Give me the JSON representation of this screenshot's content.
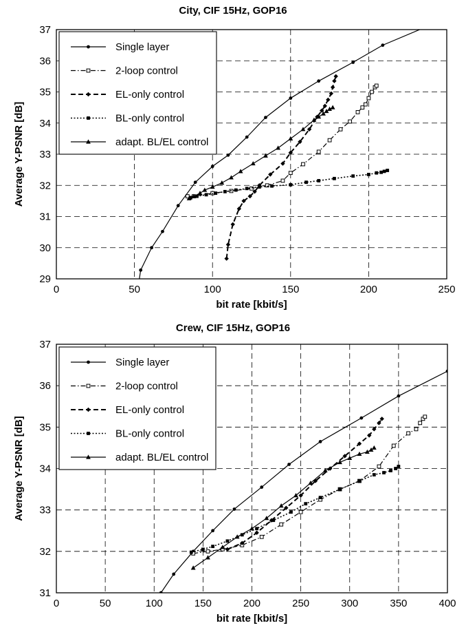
{
  "chart_data": [
    {
      "type": "line",
      "title": "City, CIF 15Hz, GOP16",
      "xlabel": "bit rate [kbit/s]",
      "ylabel": "Average Y-PSNR [dB]",
      "xlim": [
        0,
        250
      ],
      "ylim": [
        29,
        37
      ],
      "xticks": [
        0,
        50,
        100,
        150,
        200,
        250
      ],
      "yticks": [
        29,
        30,
        31,
        32,
        33,
        34,
        35,
        36,
        37
      ],
      "grid": true,
      "legend_position": "top-left",
      "series": [
        {
          "name": "Single layer",
          "marker": "circle",
          "dash": "solid",
          "x": [
            53,
            54,
            61,
            68,
            78,
            89,
            100,
            110,
            122,
            134,
            150,
            168,
            190,
            209,
            235
          ],
          "y": [
            28.95,
            29.28,
            30.0,
            30.52,
            31.35,
            32.1,
            32.61,
            32.97,
            33.55,
            34.18,
            34.8,
            35.35,
            35.95,
            36.5,
            37.05
          ]
        },
        {
          "name": "2-loop control",
          "marker": "open-square",
          "dash": "dashdot",
          "x": [
            84,
            88,
            100,
            112,
            125,
            135,
            145,
            150,
            158,
            168,
            175,
            182,
            188,
            193,
            196,
            198,
            200,
            202,
            204,
            205
          ],
          "y": [
            31.65,
            31.65,
            31.75,
            31.82,
            31.9,
            32.0,
            32.15,
            32.4,
            32.68,
            33.08,
            33.45,
            33.8,
            34.05,
            34.35,
            34.5,
            34.6,
            34.8,
            35.0,
            35.15,
            35.2
          ]
        },
        {
          "name": "EL-only control",
          "marker": "diamond",
          "dash": "dash",
          "x": [
            109,
            110,
            113,
            117,
            120,
            124,
            127,
            130,
            137,
            145,
            150,
            156,
            162,
            167,
            170,
            172,
            174,
            176,
            177,
            178,
            179
          ],
          "y": [
            29.65,
            30.1,
            30.75,
            31.25,
            31.5,
            31.65,
            31.8,
            32.0,
            32.35,
            32.7,
            33.05,
            33.4,
            33.8,
            34.2,
            34.4,
            34.55,
            34.75,
            34.95,
            35.15,
            35.35,
            35.5
          ]
        },
        {
          "name": "BL-only control",
          "marker": "filled-square",
          "dash": "dot",
          "x": [
            86,
            90,
            96,
            102,
            108,
            115,
            122,
            130,
            138,
            150,
            160,
            168,
            178,
            190,
            200,
            205,
            208,
            210,
            212
          ],
          "y": [
            31.6,
            31.65,
            31.7,
            31.75,
            31.8,
            31.85,
            31.9,
            31.95,
            31.98,
            32.02,
            32.1,
            32.15,
            32.22,
            32.3,
            32.35,
            32.4,
            32.42,
            32.45,
            32.48
          ]
        },
        {
          "name": "adapt. BL/EL control",
          "marker": "triangle",
          "dash": "solid",
          "x": [
            85,
            88,
            92,
            95,
            100,
            106,
            112,
            118,
            126,
            134,
            142,
            150,
            158,
            165,
            168,
            171,
            173,
            175,
            177
          ],
          "y": [
            31.58,
            31.65,
            31.75,
            31.85,
            31.95,
            32.08,
            32.25,
            32.45,
            32.7,
            32.95,
            33.2,
            33.5,
            33.8,
            34.1,
            34.2,
            34.3,
            34.38,
            34.45,
            34.5
          ]
        }
      ]
    },
    {
      "type": "line",
      "title": "Crew, CIF 15Hz, GOP16",
      "xlabel": "bit rate [kbit/s]",
      "ylabel": "Average Y-PSNR [dB]",
      "xlim": [
        0,
        400
      ],
      "ylim": [
        31,
        37
      ],
      "xticks": [
        0,
        50,
        100,
        150,
        200,
        250,
        300,
        350,
        400
      ],
      "yticks": [
        31,
        32,
        33,
        34,
        35,
        36,
        37
      ],
      "grid": true,
      "legend_position": "top-left",
      "series": [
        {
          "name": "Single layer",
          "marker": "circle",
          "dash": "solid",
          "x": [
            107,
            120,
            140,
            160,
            182,
            210,
            238,
            270,
            312,
            350,
            400
          ],
          "y": [
            31.0,
            31.45,
            32.0,
            32.5,
            33.02,
            33.55,
            34.1,
            34.65,
            35.22,
            35.75,
            36.35
          ]
        },
        {
          "name": "2-loop control",
          "marker": "open-square",
          "dash": "dashdot",
          "x": [
            140,
            155,
            170,
            190,
            210,
            230,
            250,
            270,
            290,
            310,
            330,
            345,
            360,
            368,
            372,
            375,
            377
          ],
          "y": [
            31.95,
            32.0,
            32.05,
            32.15,
            32.35,
            32.65,
            32.95,
            33.25,
            33.5,
            33.7,
            34.05,
            34.55,
            34.85,
            34.95,
            35.1,
            35.2,
            35.25
          ]
        },
        {
          "name": "EL-only control",
          "marker": "diamond",
          "dash": "dash",
          "x": [
            175,
            190,
            205,
            220,
            235,
            250,
            265,
            280,
            295,
            310,
            320,
            325,
            330,
            333
          ],
          "y": [
            32.05,
            32.2,
            32.45,
            32.75,
            33.05,
            33.35,
            33.7,
            34.0,
            34.3,
            34.6,
            34.8,
            34.95,
            35.1,
            35.2
          ]
        },
        {
          "name": "BL-only control",
          "marker": "filled-square",
          "dash": "dot",
          "x": [
            138,
            150,
            160,
            175,
            190,
            205,
            222,
            240,
            255,
            270,
            290,
            310,
            325,
            335,
            342,
            347,
            350
          ],
          "y": [
            31.98,
            32.05,
            32.12,
            32.25,
            32.4,
            32.55,
            32.75,
            32.95,
            33.15,
            33.3,
            33.5,
            33.7,
            33.85,
            33.9,
            33.95,
            34.0,
            34.05
          ]
        },
        {
          "name": "adapt. BL/EL control",
          "marker": "triangle",
          "dash": "solid",
          "x": [
            140,
            155,
            170,
            185,
            200,
            215,
            230,
            245,
            260,
            275,
            290,
            300,
            310,
            318,
            322,
            325
          ],
          "y": [
            31.6,
            31.85,
            32.1,
            32.35,
            32.55,
            32.8,
            33.1,
            33.35,
            33.65,
            33.95,
            34.15,
            34.25,
            34.35,
            34.4,
            34.45,
            34.5
          ]
        }
      ]
    }
  ]
}
